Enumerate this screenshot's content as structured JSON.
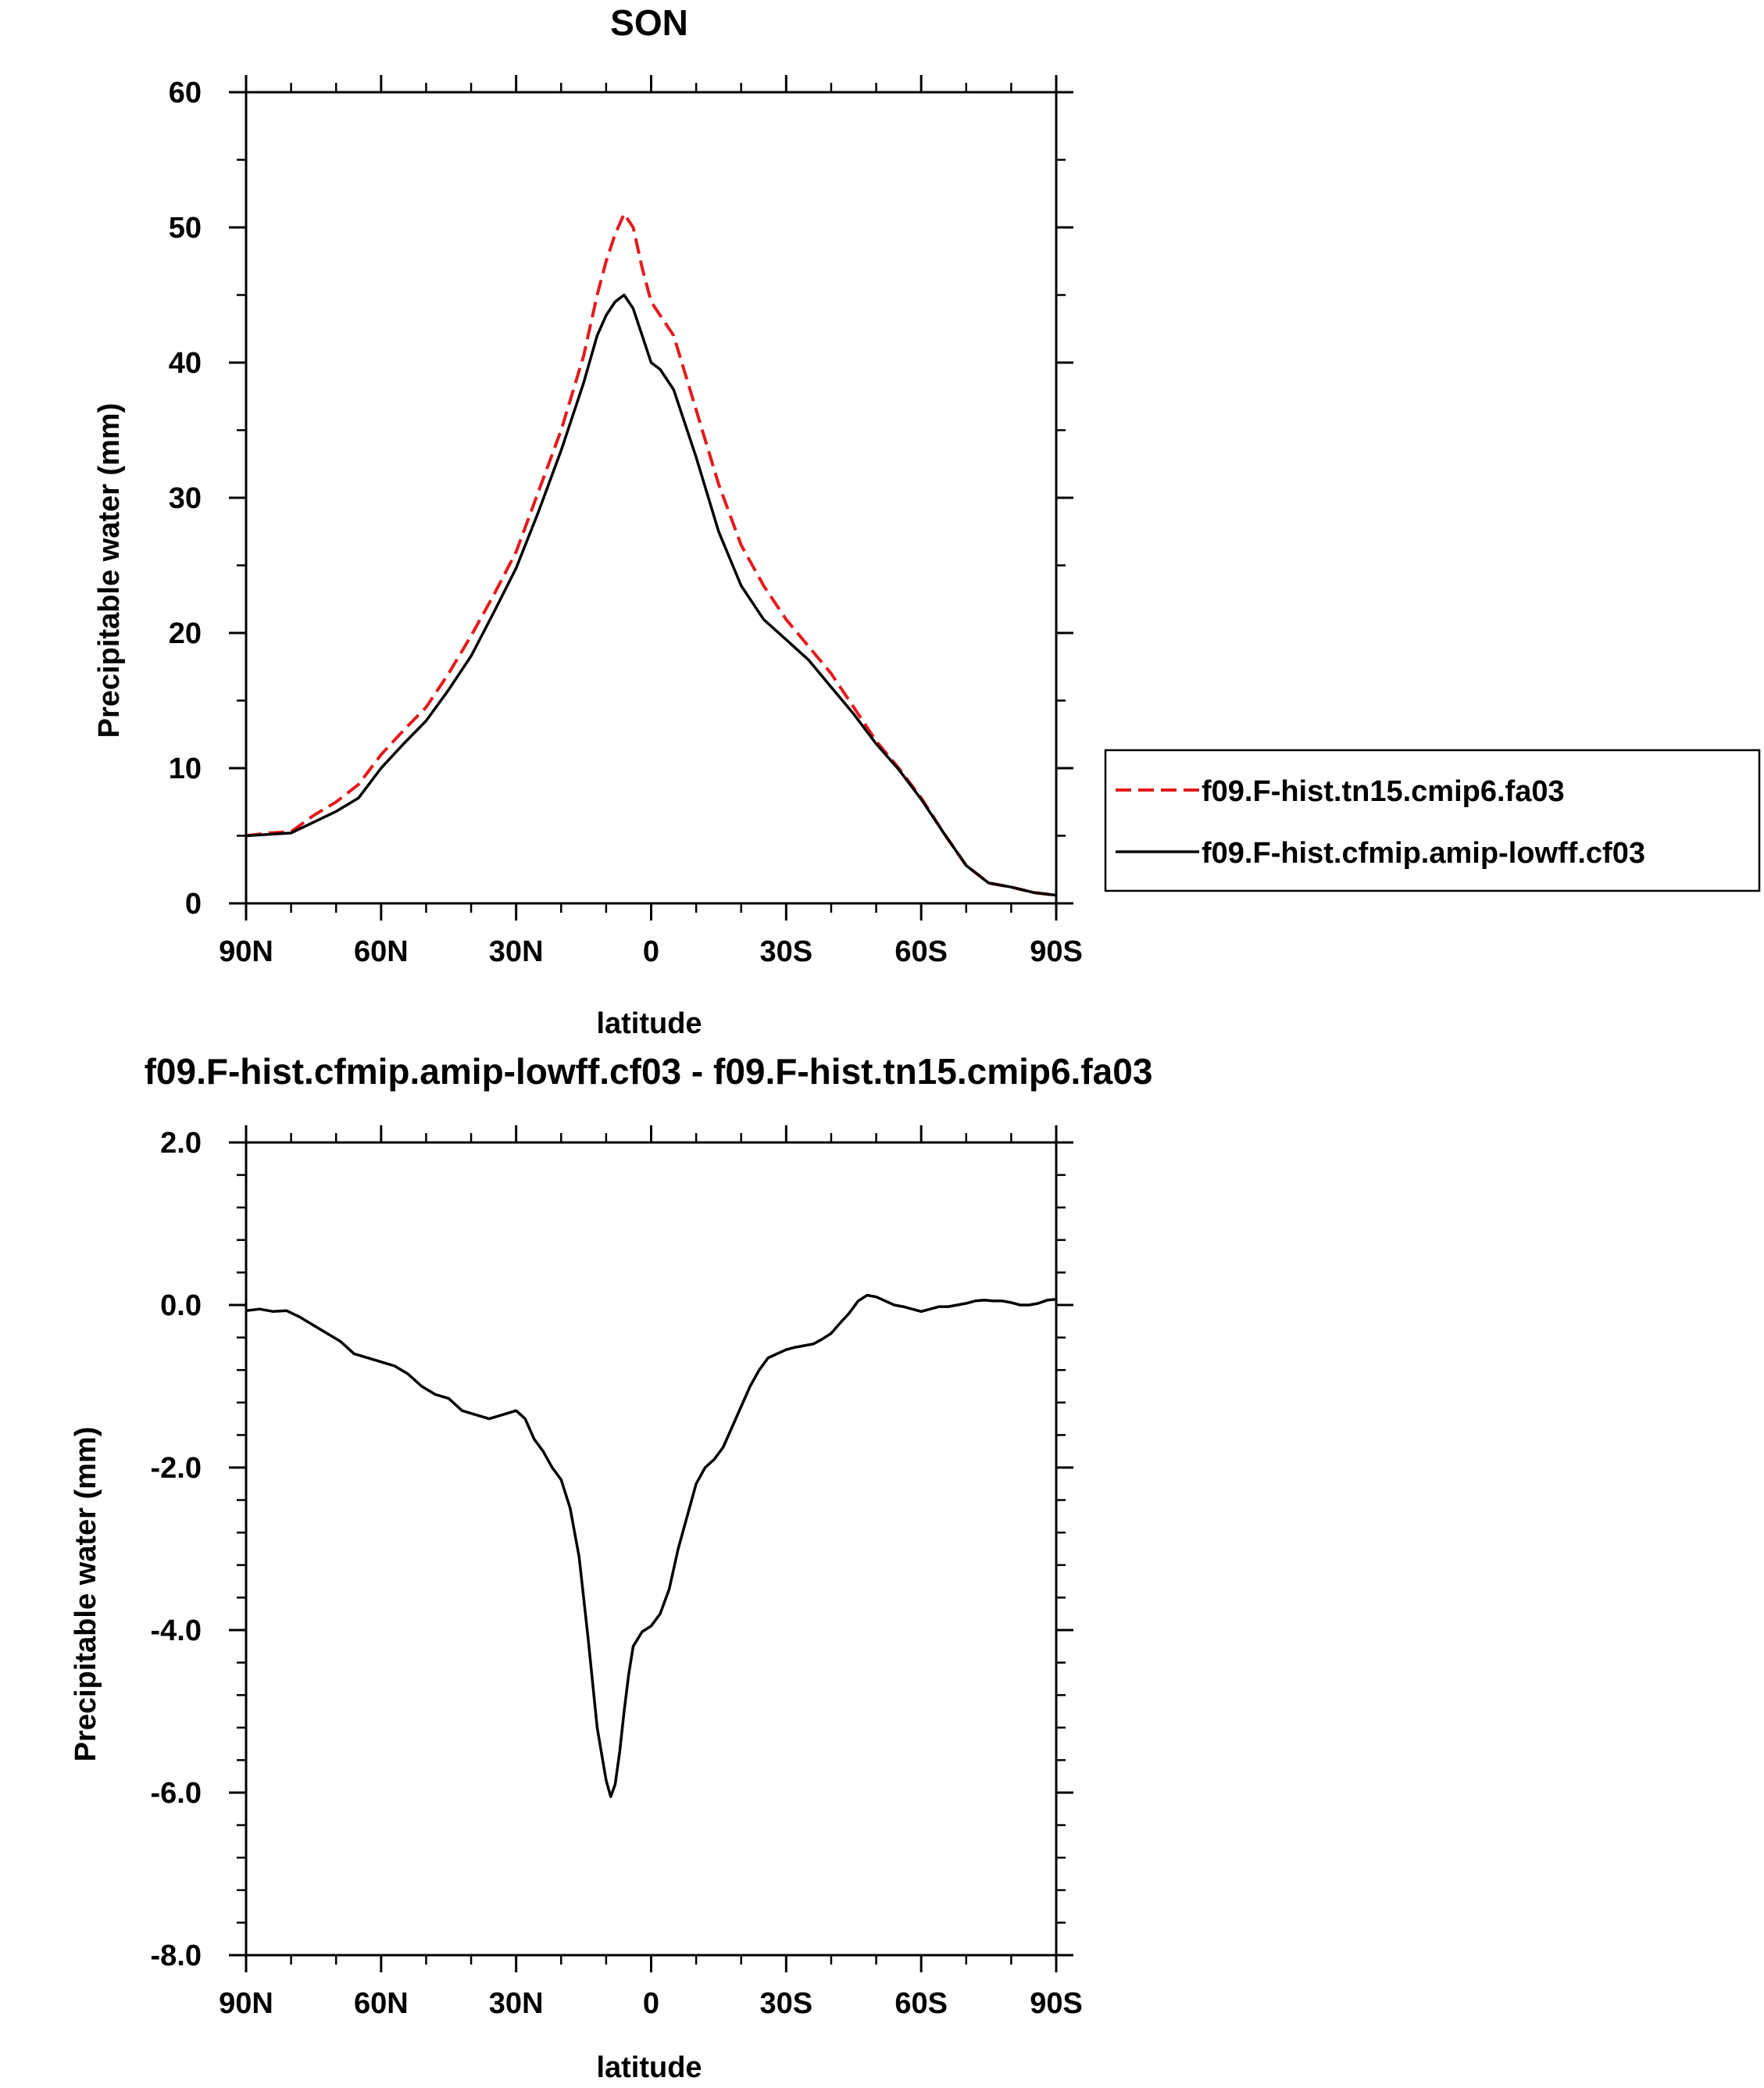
{
  "chart_data": [
    {
      "type": "line",
      "title": "SON",
      "xlabel": "latitude",
      "ylabel": "Precipitable water (mm)",
      "xlim": [
        90,
        -90
      ],
      "ylim": [
        0,
        60
      ],
      "x_ticks": [
        {
          "value": 90,
          "label": "90N"
        },
        {
          "value": 60,
          "label": "60N"
        },
        {
          "value": 30,
          "label": "30N"
        },
        {
          "value": 0,
          "label": "0"
        },
        {
          "value": -30,
          "label": "30S"
        },
        {
          "value": -60,
          "label": "60S"
        },
        {
          "value": -90,
          "label": "90S"
        }
      ],
      "y_ticks": [
        {
          "value": 0,
          "label": "0"
        },
        {
          "value": 10,
          "label": "10"
        },
        {
          "value": 20,
          "label": "20"
        },
        {
          "value": 30,
          "label": "30"
        },
        {
          "value": 40,
          "label": "40"
        },
        {
          "value": 50,
          "label": "50"
        },
        {
          "value": 60,
          "label": "60"
        }
      ],
      "legend_position": "right",
      "series": [
        {
          "name": "f09.F-hist.tn15.cmip6.fa03",
          "color": "#e41a1c",
          "style": "dashed",
          "x": [
            90,
            85,
            80,
            75,
            70,
            65,
            60,
            55,
            50,
            45,
            40,
            35,
            30,
            25,
            20,
            15,
            12,
            10,
            8,
            6,
            4,
            2,
            0,
            -2,
            -5,
            -10,
            -15,
            -20,
            -25,
            -30,
            -35,
            -40,
            -45,
            -50,
            -55,
            -60,
            -65,
            -70,
            -75,
            -80,
            -85,
            -90
          ],
          "y": [
            5.0,
            5.2,
            5.3,
            6.5,
            7.5,
            8.8,
            11.0,
            12.8,
            14.5,
            17.0,
            19.8,
            22.8,
            26.0,
            30.5,
            35.0,
            40.5,
            45.0,
            47.5,
            49.5,
            51.0,
            50.0,
            47.0,
            44.5,
            43.5,
            42.0,
            36.5,
            31.0,
            26.5,
            23.5,
            21.0,
            19.0,
            17.0,
            14.5,
            12.0,
            10.0,
            7.8,
            5.2,
            2.8,
            1.5,
            1.2,
            0.8,
            0.6
          ]
        },
        {
          "name": "f09.F-hist.cfmip.amip-lowff.cf03",
          "color": "#000000",
          "style": "solid",
          "x": [
            90,
            85,
            80,
            75,
            70,
            65,
            60,
            55,
            50,
            45,
            40,
            35,
            30,
            25,
            20,
            15,
            12,
            10,
            8,
            6,
            4,
            2,
            0,
            -2,
            -5,
            -10,
            -15,
            -20,
            -25,
            -30,
            -35,
            -40,
            -45,
            -50,
            -55,
            -60,
            -65,
            -70,
            -75,
            -80,
            -85,
            -90
          ],
          "y": [
            5.0,
            5.1,
            5.2,
            6.0,
            6.8,
            7.8,
            10.0,
            11.8,
            13.5,
            15.8,
            18.3,
            21.5,
            24.8,
            29.0,
            33.5,
            38.5,
            42.0,
            43.5,
            44.5,
            45.0,
            44.0,
            42.0,
            40.0,
            39.5,
            38.0,
            33.0,
            27.5,
            23.5,
            21.0,
            19.5,
            18.0,
            16.0,
            14.0,
            11.8,
            9.9,
            7.7,
            5.2,
            2.8,
            1.5,
            1.2,
            0.8,
            0.6
          ]
        }
      ]
    },
    {
      "type": "line",
      "title": "f09.F-hist.cfmip.amip-lowff.cf03 - f09.F-hist.tn15.cmip6.fa03",
      "xlabel": "latitude",
      "ylabel": "Precipitable water (mm)",
      "xlim": [
        90,
        -90
      ],
      "ylim": [
        -8,
        2
      ],
      "x_ticks": [
        {
          "value": 90,
          "label": "90N"
        },
        {
          "value": 60,
          "label": "60N"
        },
        {
          "value": 30,
          "label": "30N"
        },
        {
          "value": 0,
          "label": "0"
        },
        {
          "value": -30,
          "label": "30S"
        },
        {
          "value": -60,
          "label": "60S"
        },
        {
          "value": -90,
          "label": "90S"
        }
      ],
      "y_ticks": [
        {
          "value": -8,
          "label": "-8.0"
        },
        {
          "value": -6,
          "label": "-6.0"
        },
        {
          "value": -4,
          "label": "-4.0"
        },
        {
          "value": -2,
          "label": "-2.0"
        },
        {
          "value": 0,
          "label": "0.0"
        },
        {
          "value": 2,
          "label": "2.0"
        }
      ],
      "series": [
        {
          "color": "#000000",
          "style": "solid",
          "x": [
            90,
            87,
            84,
            81,
            78,
            75,
            72,
            69,
            66,
            63,
            60,
            57,
            54,
            51,
            48,
            45,
            42,
            39,
            36,
            33,
            30,
            28,
            26,
            24,
            22,
            20,
            18,
            16,
            14,
            12,
            10,
            9,
            8,
            7,
            6,
            5,
            4,
            2,
            0,
            -2,
            -4,
            -6,
            -8,
            -10,
            -12,
            -14,
            -16,
            -18,
            -20,
            -22,
            -24,
            -26,
            -28,
            -30,
            -32,
            -34,
            -36,
            -38,
            -40,
            -42,
            -44,
            -46,
            -48,
            -50,
            -52,
            -54,
            -56,
            -58,
            -60,
            -62,
            -64,
            -66,
            -68,
            -70,
            -72,
            -74,
            -76,
            -78,
            -80,
            -82,
            -84,
            -86,
            -88,
            -90
          ],
          "y": [
            -0.07,
            -0.05,
            -0.08,
            -0.07,
            -0.15,
            -0.25,
            -0.35,
            -0.45,
            -0.6,
            -0.65,
            -0.7,
            -0.75,
            -0.85,
            -1.0,
            -1.1,
            -1.15,
            -1.3,
            -1.35,
            -1.4,
            -1.35,
            -1.3,
            -1.4,
            -1.65,
            -1.8,
            -2.0,
            -2.15,
            -2.5,
            -3.1,
            -4.1,
            -5.2,
            -5.85,
            -6.05,
            -5.9,
            -5.5,
            -5.0,
            -4.55,
            -4.2,
            -4.02,
            -3.95,
            -3.8,
            -3.5,
            -3.0,
            -2.6,
            -2.2,
            -2.0,
            -1.9,
            -1.75,
            -1.5,
            -1.25,
            -1.0,
            -0.8,
            -0.65,
            -0.6,
            -0.55,
            -0.52,
            -0.5,
            -0.48,
            -0.42,
            -0.35,
            -0.22,
            -0.1,
            0.05,
            0.12,
            0.1,
            0.05,
            0.0,
            -0.02,
            -0.05,
            -0.08,
            -0.05,
            -0.02,
            -0.02,
            0.0,
            0.02,
            0.05,
            0.06,
            0.05,
            0.05,
            0.03,
            0.0,
            0.0,
            0.02,
            0.06,
            0.07
          ]
        }
      ]
    }
  ]
}
